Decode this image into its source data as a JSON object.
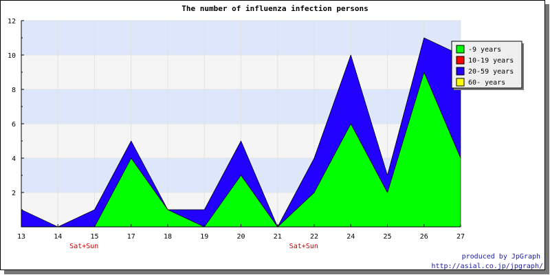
{
  "chart_data": {
    "type": "area",
    "stacked": true,
    "title": "The number of influenza infection persons",
    "xlabel": "",
    "ylabel": "",
    "categories": [
      "13",
      "14",
      "15",
      "17",
      "18",
      "19",
      "20",
      "21",
      "22",
      "24",
      "25",
      "26",
      "27"
    ],
    "category_annotations": [
      {
        "category": "14",
        "text": "Sat+Sun"
      },
      {
        "category": "21",
        "text": "Sat+Sun"
      }
    ],
    "series": [
      {
        "name": "-9 years",
        "color": "#00ff00",
        "values": [
          0,
          0,
          0,
          4,
          1,
          0,
          3,
          0,
          2,
          6,
          2,
          9,
          4
        ]
      },
      {
        "name": "10-19 years",
        "color": "#ff0000",
        "values": [
          0,
          0,
          0,
          0,
          0,
          0,
          0,
          0,
          0,
          0,
          0,
          0,
          0
        ]
      },
      {
        "name": "20-59 years",
        "color": "#2200ff",
        "values": [
          1,
          0,
          1,
          1,
          0,
          1,
          2,
          0,
          2,
          4,
          1,
          2,
          6
        ]
      },
      {
        "name": "60- years",
        "color": "#ffff00",
        "values": [
          0,
          0,
          0,
          0,
          0,
          0,
          0,
          0,
          0,
          0,
          0,
          0,
          0
        ]
      }
    ],
    "ylim": [
      0,
      12
    ],
    "yticks": [
      2,
      4,
      6,
      8,
      10,
      12
    ],
    "grid": true,
    "band_colors": [
      "#f5f5f5",
      "#dde6fb"
    ],
    "legend_position": "top-right"
  },
  "credit": {
    "line1": "produced by JpGraph",
    "line2": "http://asial.co.jp/jpgraph/"
  }
}
